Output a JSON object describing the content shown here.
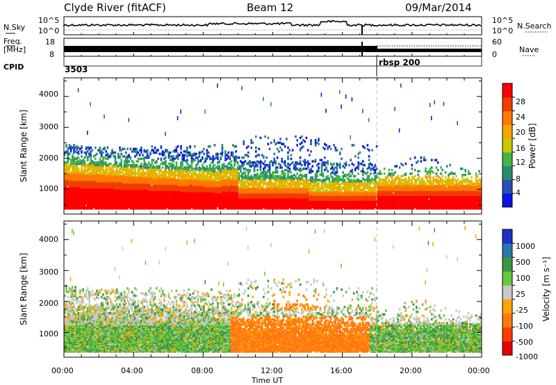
{
  "header": {
    "station": "Clyde River (fitACF)",
    "beam": "Beam 12",
    "date": "09/Mar/2014"
  },
  "noise_panel": {
    "left_label": "N.Sky",
    "left_ticks": [
      "10^5",
      "10^0"
    ],
    "right_label": "N.Search",
    "right_ticks": [
      "10^5",
      "10^0"
    ]
  },
  "freq_panel": {
    "left_label_1": "Freq.",
    "left_label_2": "[MHz]",
    "left_ticks": [
      "18",
      "8"
    ],
    "right_label": "Nave",
    "right_ticks": [
      "60",
      "0"
    ]
  },
  "cpid_panel": {
    "label": "CPID",
    "programs": [
      {
        "name": "3503",
        "start_hour": 0
      },
      {
        "name": "rbsp 200",
        "start_hour": 18
      }
    ]
  },
  "time_axis": {
    "label": "Time UT",
    "ticks": [
      "00:00",
      "04:00",
      "08:00",
      "12:00",
      "16:00",
      "20:00",
      "00:00"
    ],
    "range_hours": [
      0,
      24
    ]
  },
  "chart_data": [
    {
      "type": "heatmap",
      "ylabel": "Slant Range [km]",
      "yticks": [
        "1000",
        "2000",
        "3000",
        "4000"
      ],
      "ylim": [
        200,
        4600
      ],
      "colorbar": {
        "label": "Power [dB]",
        "ticks": [
          "4",
          "8",
          "12",
          "16",
          "20",
          "24",
          "28"
        ],
        "colors": [
          "#0a14e6",
          "#2850b4",
          "#2a8c6e",
          "#46b446",
          "#c8c800",
          "#f5a500",
          "#ff7800",
          "#f03c00",
          "#ff0000"
        ]
      }
    },
    {
      "type": "heatmap",
      "ylabel": "Slant Range [km]",
      "yticks": [
        "1000",
        "2000",
        "3000",
        "4000"
      ],
      "ylim": [
        200,
        4600
      ],
      "colorbar": {
        "label": "Velocity [m s^-1]",
        "ticks": [
          "1000",
          "500",
          "100",
          "25",
          "-25",
          "-100",
          "-500",
          "-1000"
        ],
        "colors": [
          "#1e32c8",
          "#2878aa",
          "#3c9646",
          "#64c83c",
          "#c8c8c8",
          "#ffa500",
          "#ff7814",
          "#ff3c00",
          "#e60000"
        ]
      }
    }
  ]
}
